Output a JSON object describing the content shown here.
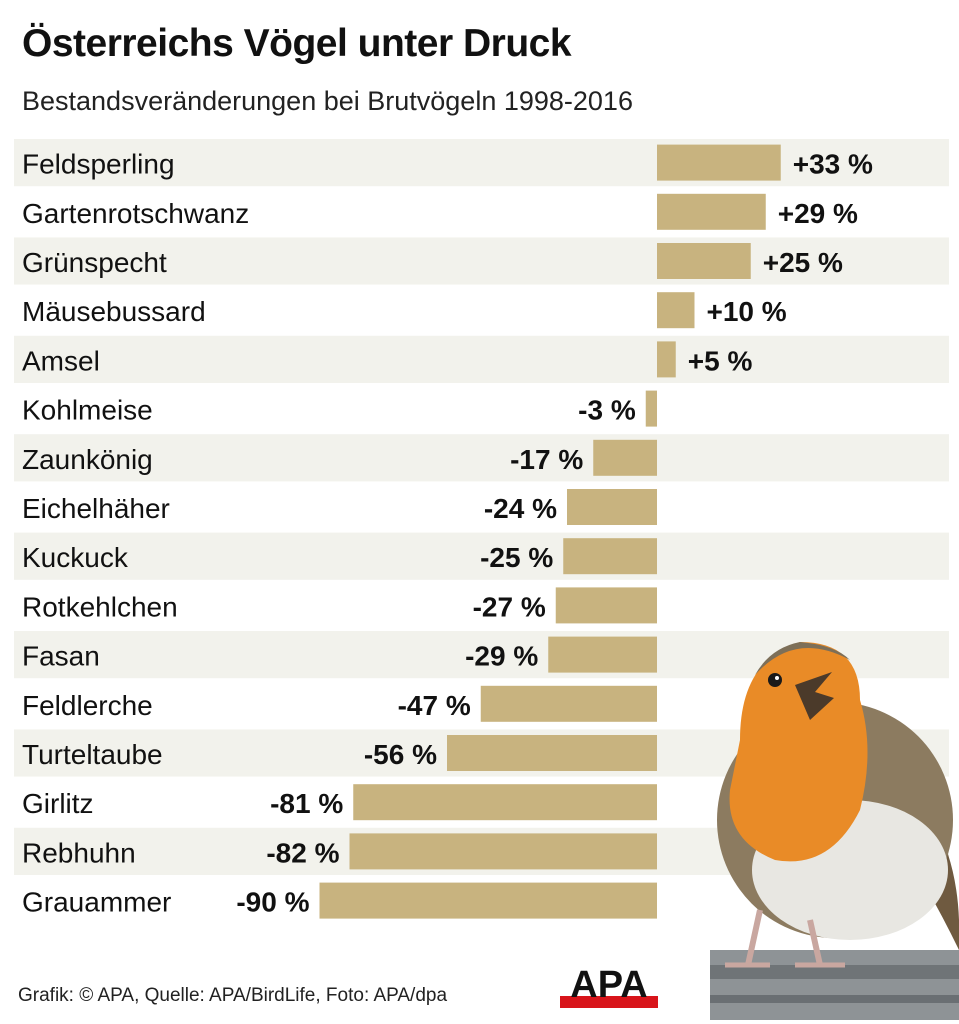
{
  "header": {
    "title": "Österreichs Vögel unter Druck",
    "subtitle": "Bestandsveränderungen bei Brutvögeln 1998-2016"
  },
  "chart_data": {
    "type": "bar",
    "orientation": "horizontal",
    "title": "Österreichs Vögel unter Druck",
    "subtitle": "Bestandsveränderungen bei Brutvögeln 1998-2016",
    "unit": "%",
    "categories": [
      "Feldsperling",
      "Gartenrotschwanz",
      "Grünspecht",
      "Mäusebussard",
      "Amsel",
      "Kohlmeise",
      "Zaunkönig",
      "Eichelhäher",
      "Kuckuck",
      "Rotkehlchen",
      "Fasan",
      "Feldlerche",
      "Turteltaube",
      "Girlitz",
      "Rebhuhn",
      "Grauammer"
    ],
    "values": [
      33,
      29,
      25,
      10,
      5,
      -3,
      -17,
      -24,
      -25,
      -27,
      -29,
      -47,
      -56,
      -81,
      -82,
      -90
    ],
    "labels": [
      "+33 %",
      "+29 %",
      "+25 %",
      "+10 %",
      "+5 %",
      "-3 %",
      "-17 %",
      "-24 %",
      "-25 %",
      "-27 %",
      "-29 %",
      "-47 %",
      "-56 %",
      "-81 %",
      "-82 %",
      "-90 %"
    ],
    "bar_color": "#c8b37f",
    "stripe_color": "#f2f2ec"
  },
  "footer": {
    "source": "Grafik: © APA, Quelle: APA/BirdLife, Foto: APA/dpa",
    "logo_text": "APA"
  },
  "colors": {
    "logo_red": "#d8141a",
    "text": "#111111"
  },
  "photo": {
    "icon": "robin-bird-photo"
  }
}
